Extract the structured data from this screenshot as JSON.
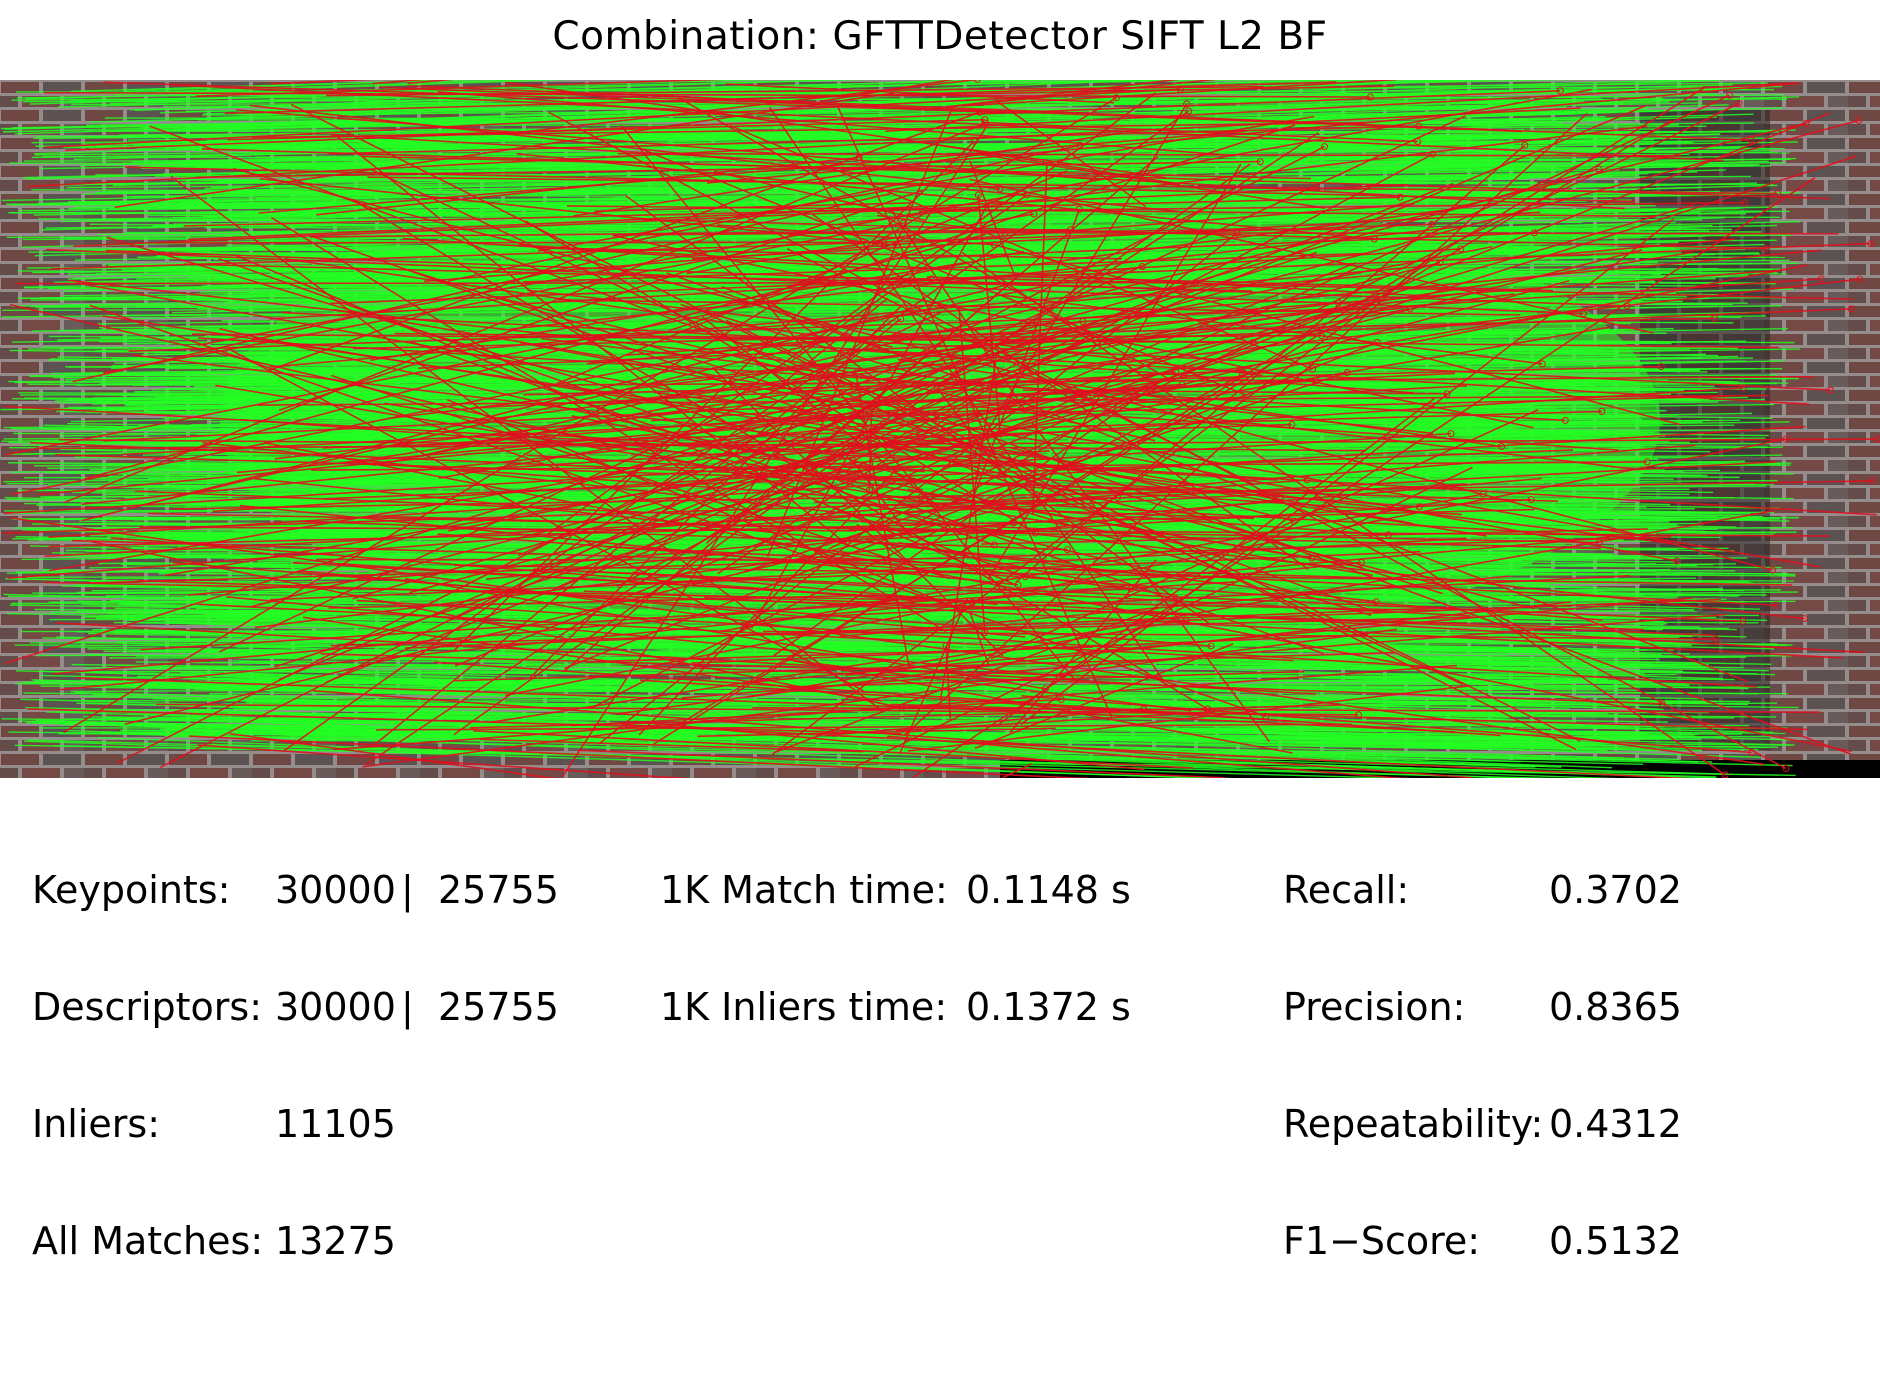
{
  "title": "Combination: GFTTDetector SIFT L2 BF",
  "colors": {
    "inlier_line": "#22ff22",
    "outlier_line": "#e0101e",
    "wall_base": "#6f6566",
    "brick": "#7a3f3a",
    "mortar": "#b9b3b0",
    "background": "#ffffff"
  },
  "stats": {
    "keypoints_label": "Keypoints:",
    "keypoints_left": "30000",
    "keypoints_right": "25755",
    "descriptors_label": "Descriptors:",
    "descriptors_left": "30000",
    "descriptors_right": "25755",
    "inliers_label": "Inliers:",
    "inliers_value": "11105",
    "all_matches_label": "All Matches:",
    "all_matches_value": "13275",
    "separator": "|",
    "match_time_label": "1K Match time:",
    "match_time_value": "0.1148 s",
    "inliers_time_label": "1K Inliers time:",
    "inliers_time_value": "0.1372 s",
    "recall_label": "Recall:",
    "recall_value": "0.3702",
    "precision_label": "Precision:",
    "precision_value": "0.8365",
    "repeatability_label": "Repeatability:",
    "repeatability_value": "0.4312",
    "f1_label": "F1−Score:",
    "f1_value": "0.5132"
  }
}
